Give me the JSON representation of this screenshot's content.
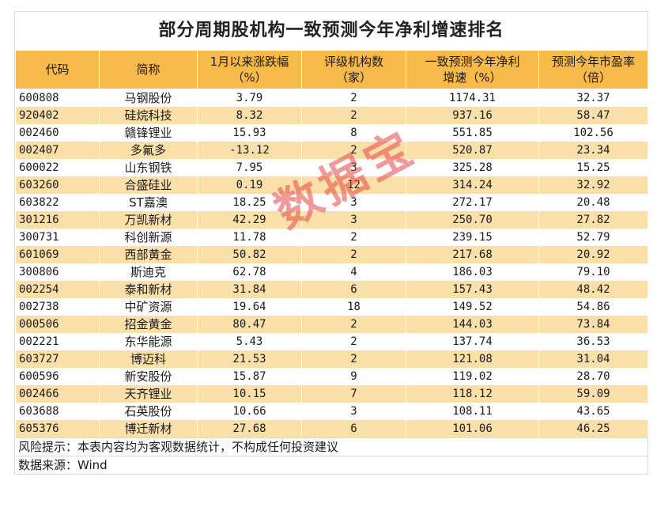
{
  "chart_data": {
    "type": "table",
    "title": "部分周期股机构一致预测今年净利增速排名",
    "columns": [
      {
        "line1": "代码",
        "line2": ""
      },
      {
        "line1": "简称",
        "line2": ""
      },
      {
        "line1": "1月以来涨跌幅",
        "line2": "（%）"
      },
      {
        "line1": "评级机构数",
        "line2": "（家）"
      },
      {
        "line1": "一致预测今年净利",
        "line2": "增速（%）"
      },
      {
        "line1": "预测今年市盈率",
        "line2": "（倍）"
      }
    ],
    "rows": [
      [
        "600808",
        "马钢股份",
        "3.79",
        "2",
        "1174.31",
        "32.37"
      ],
      [
        "920402",
        "硅烷科技",
        "8.32",
        "2",
        "937.16",
        "58.47"
      ],
      [
        "002460",
        "赣锋锂业",
        "15.93",
        "8",
        "551.85",
        "102.56"
      ],
      [
        "002407",
        "多氟多",
        "-13.12",
        "2",
        "520.87",
        "23.34"
      ],
      [
        "600022",
        "山东钢铁",
        "7.95",
        "3",
        "325.28",
        "15.25"
      ],
      [
        "603260",
        "合盛硅业",
        "0.19",
        "12",
        "314.24",
        "32.92"
      ],
      [
        "603822",
        "ST嘉澳",
        "18.25",
        "3",
        "272.17",
        "20.48"
      ],
      [
        "301216",
        "万凯新材",
        "42.29",
        "3",
        "250.70",
        "27.82"
      ],
      [
        "300731",
        "科创新源",
        "11.78",
        "2",
        "239.15",
        "52.79"
      ],
      [
        "601069",
        "西部黄金",
        "50.82",
        "2",
        "217.68",
        "20.92"
      ],
      [
        "300806",
        "斯迪克",
        "62.78",
        "4",
        "186.03",
        "79.10"
      ],
      [
        "002254",
        "泰和新材",
        "31.84",
        "6",
        "157.43",
        "48.42"
      ],
      [
        "002738",
        "中矿资源",
        "19.64",
        "18",
        "149.52",
        "54.86"
      ],
      [
        "000506",
        "招金黄金",
        "80.47",
        "2",
        "144.03",
        "73.84"
      ],
      [
        "002221",
        "东华能源",
        "5.43",
        "2",
        "137.74",
        "36.53"
      ],
      [
        "603727",
        "博迈科",
        "21.53",
        "2",
        "121.08",
        "31.04"
      ],
      [
        "600596",
        "新安股份",
        "15.87",
        "9",
        "119.02",
        "28.70"
      ],
      [
        "002466",
        "天齐锂业",
        "10.15",
        "7",
        "118.12",
        "59.09"
      ],
      [
        "603688",
        "石英股份",
        "10.66",
        "3",
        "108.11",
        "43.65"
      ],
      [
        "605376",
        "博迁新材",
        "27.68",
        "6",
        "101.06",
        "46.25"
      ]
    ]
  },
  "footer": {
    "risk_note": "风险提示：本表内容均为客观数据统计，不构成任何投资建议",
    "source": "数据来源：Wind"
  },
  "watermark": "数据宝",
  "colors": {
    "header_bg": "#f6b94a",
    "stripe_bg": "#fbdfa8",
    "watermark": "#e64646"
  }
}
